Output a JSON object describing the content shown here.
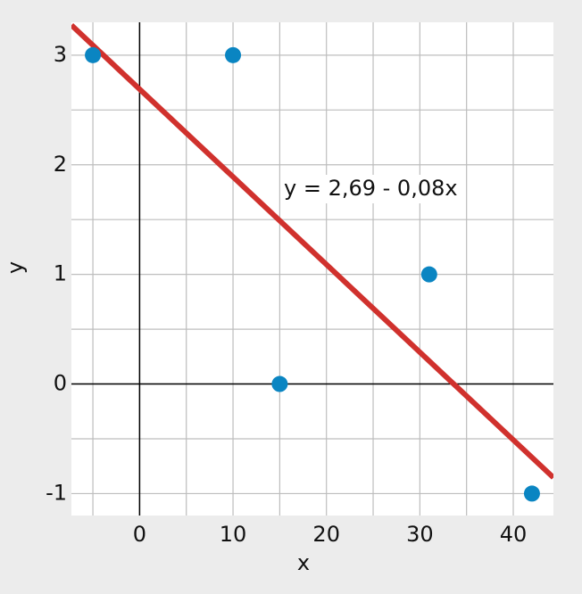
{
  "chart_data": {
    "type": "scatter",
    "x": [
      -5,
      10,
      15,
      31,
      42
    ],
    "values": [
      3,
      3,
      0,
      1,
      -1
    ],
    "color": "#0a85c2",
    "fit": {
      "intercept": 2.69,
      "slope": -0.08,
      "color": "#d0312d",
      "label": "y = 2,69 - 0,08x"
    },
    "xlabel": "x",
    "ylabel": "y",
    "xlim": [
      -7.3,
      44.3
    ],
    "ylim": [
      -1.2,
      3.3
    ],
    "xticks": [
      0,
      10,
      20,
      30,
      40
    ],
    "yticks": [
      -1,
      0,
      1,
      2,
      3
    ],
    "xgrid": [
      -5,
      0,
      5,
      10,
      15,
      20,
      25,
      30,
      35,
      40
    ],
    "ygrid": [
      -1,
      -0.5,
      0,
      0.5,
      1,
      1.5,
      2,
      2.5,
      3
    ],
    "grid": true
  }
}
